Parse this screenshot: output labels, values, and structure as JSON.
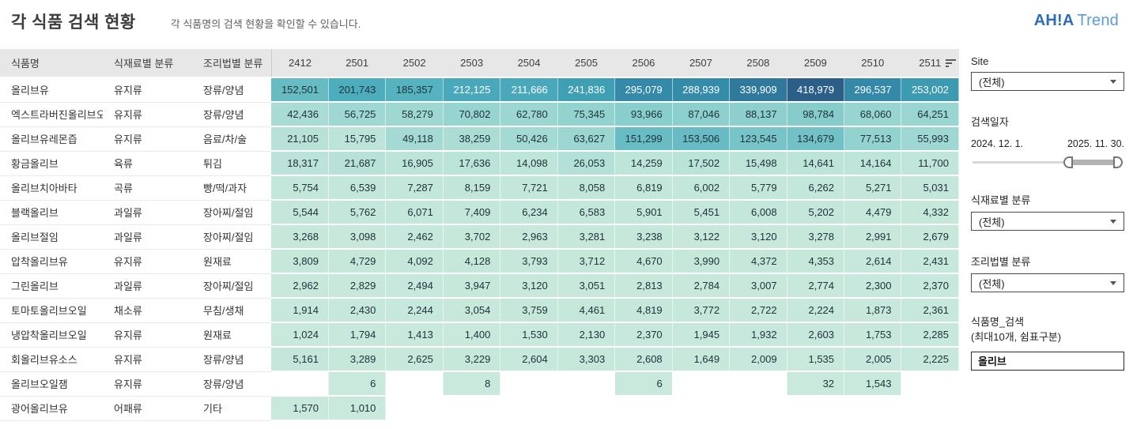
{
  "header": {
    "title": "각 식품 검색 현황",
    "subtitle": "각 식품명의 검색 현황을 확인할 수 있습니다.",
    "logo_bold": "AH!A",
    "logo_light": "Trend"
  },
  "chart_data": {
    "type": "heatmap",
    "fixed_columns": [
      "식품명",
      "식재료별 분류",
      "조리법별 분류"
    ],
    "month_columns": [
      "2412",
      "2501",
      "2502",
      "2503",
      "2504",
      "2505",
      "2506",
      "2507",
      "2508",
      "2509",
      "2510",
      "2511"
    ],
    "rows": [
      {
        "name": "올리브유",
        "ingredient": "유지류",
        "method": "장류/양념",
        "values": [
          152501,
          201743,
          185357,
          212125,
          211666,
          241836,
          295079,
          288939,
          339909,
          418979,
          296537,
          253002
        ]
      },
      {
        "name": "엑스트라버진올리브오",
        "ingredient": "유지류",
        "method": "장류/양념",
        "values": [
          42436,
          56725,
          58279,
          70802,
          62780,
          75345,
          93966,
          87046,
          88137,
          98784,
          68060,
          64251
        ]
      },
      {
        "name": "올리브유레몬즙",
        "ingredient": "유지류",
        "method": "음료/차/술",
        "values": [
          21105,
          15795,
          49118,
          38259,
          50426,
          63627,
          151299,
          153506,
          123545,
          134679,
          77513,
          55993
        ]
      },
      {
        "name": "황금올리브",
        "ingredient": "육류",
        "method": "튀김",
        "values": [
          18317,
          21687,
          16905,
          17636,
          14098,
          26053,
          14259,
          17502,
          15498,
          14641,
          14164,
          11700
        ]
      },
      {
        "name": "올리브치아바타",
        "ingredient": "곡류",
        "method": "빵/떡/과자",
        "values": [
          5754,
          6539,
          7287,
          8159,
          7721,
          8058,
          6819,
          6002,
          5779,
          6262,
          5271,
          5031
        ]
      },
      {
        "name": "블랙올리브",
        "ingredient": "과일류",
        "method": "장아찌/절임",
        "values": [
          5544,
          5762,
          6071,
          7409,
          6234,
          6583,
          5901,
          5451,
          6008,
          5202,
          4479,
          4332
        ]
      },
      {
        "name": "올리브절임",
        "ingredient": "과일류",
        "method": "장아찌/절임",
        "values": [
          3268,
          3098,
          2462,
          3702,
          2963,
          3281,
          3238,
          3122,
          3120,
          3278,
          2991,
          2679
        ]
      },
      {
        "name": "압착올리브유",
        "ingredient": "유지류",
        "method": "원재료",
        "values": [
          3809,
          4729,
          4092,
          4128,
          3793,
          3712,
          4670,
          3990,
          4372,
          4353,
          2614,
          2431
        ]
      },
      {
        "name": "그린올리브",
        "ingredient": "과일류",
        "method": "장아찌/절임",
        "values": [
          2962,
          2829,
          2494,
          3947,
          3120,
          3051,
          2813,
          2784,
          3007,
          2774,
          2300,
          2370
        ]
      },
      {
        "name": "토마토올리브오일",
        "ingredient": "채소류",
        "method": "무침/생채",
        "values": [
          1914,
          2430,
          2244,
          3054,
          3759,
          4461,
          4819,
          3772,
          2722,
          2224,
          1873,
          2361
        ]
      },
      {
        "name": "냉압착올리브오일",
        "ingredient": "유지류",
        "method": "원재료",
        "values": [
          1024,
          1794,
          1413,
          1400,
          1530,
          2130,
          2370,
          1945,
          1932,
          2603,
          1753,
          2285
        ]
      },
      {
        "name": "회올리브유소스",
        "ingredient": "유지류",
        "method": "장류/양념",
        "values": [
          5161,
          3289,
          2625,
          3229,
          2604,
          3303,
          2608,
          1649,
          2009,
          1535,
          2005,
          2225
        ]
      },
      {
        "name": "올리브오일잼",
        "ingredient": "유지류",
        "method": "장류/양념",
        "values": [
          null,
          6,
          null,
          8,
          null,
          null,
          6,
          null,
          null,
          32,
          1543,
          null
        ]
      },
      {
        "name": "광어올리브유",
        "ingredient": "어패류",
        "method": "기타",
        "values": [
          1570,
          1010,
          null,
          null,
          null,
          null,
          null,
          null,
          null,
          null,
          null,
          null
        ]
      }
    ],
    "heatmap_scale": {
      "max_value": 418979,
      "stops": [
        [
          0,
          "#c9e9dc"
        ],
        [
          0.1,
          "#a8dcd4"
        ],
        [
          0.24,
          "#84cccb"
        ],
        [
          0.36,
          "#68bcc4"
        ],
        [
          0.48,
          "#4cadbd"
        ],
        [
          0.58,
          "#3f9fb3"
        ],
        [
          0.71,
          "#3389a7"
        ],
        [
          0.81,
          "#2f7a9c"
        ],
        [
          1,
          "#2c5f88"
        ]
      ],
      "white_text_threshold": 0.505
    }
  },
  "filters": {
    "site": {
      "label": "Site",
      "value": "(전체)"
    },
    "date": {
      "label": "검색일자",
      "start": "2024. 12. 1.",
      "end": "2025. 11. 30."
    },
    "ingredient": {
      "label": "식재료별 분류",
      "value": "(전체)"
    },
    "method": {
      "label": "조리법별 분류",
      "value": "(전체)"
    },
    "search": {
      "label_line1": "식품명_검색",
      "label_line2": "(최대10개, 쉼표구분)",
      "value": "올리브"
    }
  }
}
